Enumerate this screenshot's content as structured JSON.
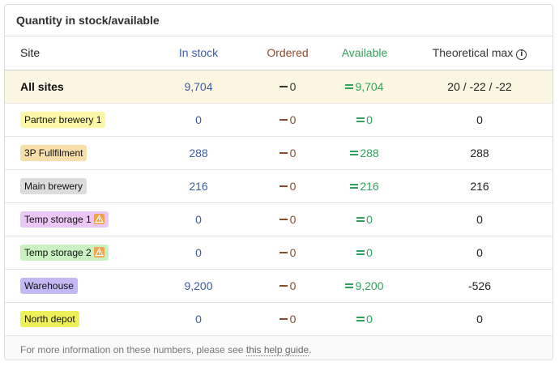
{
  "title": "Quantity in stock/available",
  "columns": {
    "site": "Site",
    "in_stock": "In stock",
    "ordered": "Ordered",
    "available": "Available",
    "theoretical_max": "Theoretical max"
  },
  "all_sites": {
    "label": "All sites",
    "in_stock": "9,704",
    "ordered": "0",
    "available": "9,704",
    "theoretical_max": "20 / -22 / -22"
  },
  "rows": [
    {
      "site": "Partner brewery 1",
      "badge_color": "#fbf7a6",
      "warning": false,
      "in_stock": "0",
      "ordered": "0",
      "available": "0",
      "theoretical_max": "0"
    },
    {
      "site": "3P Fullfilment",
      "badge_color": "#f6dfab",
      "warning": false,
      "in_stock": "288",
      "ordered": "0",
      "available": "288",
      "theoretical_max": "288"
    },
    {
      "site": "Main brewery",
      "badge_color": "#dcdcdc",
      "warning": false,
      "in_stock": "216",
      "ordered": "0",
      "available": "216",
      "theoretical_max": "216"
    },
    {
      "site": "Temp storage 1",
      "badge_color": "#ecc6f5",
      "warning": true,
      "in_stock": "0",
      "ordered": "0",
      "available": "0",
      "theoretical_max": "0"
    },
    {
      "site": "Temp storage 2",
      "badge_color": "#c9f1c1",
      "warning": true,
      "in_stock": "0",
      "ordered": "0",
      "available": "0",
      "theoretical_max": "0"
    },
    {
      "site": "Warehouse",
      "badge_color": "#c3b8f3",
      "warning": false,
      "in_stock": "9,200",
      "ordered": "0",
      "available": "9,200",
      "theoretical_max": "-526"
    },
    {
      "site": "North depot",
      "badge_color": "#eef05a",
      "warning": false,
      "in_stock": "0",
      "ordered": "0",
      "available": "0",
      "theoretical_max": "0"
    }
  ],
  "footer": {
    "text_before": "For more information on these numbers, please see ",
    "link_text": "this help guide",
    "text_after": "."
  },
  "colors": {
    "in_stock": "#3b5ba5",
    "ordered": "#8a4b2a",
    "available": "#2fa35a",
    "all_sites_bg": "#fbf6e1",
    "warning": "#f0a54c"
  }
}
